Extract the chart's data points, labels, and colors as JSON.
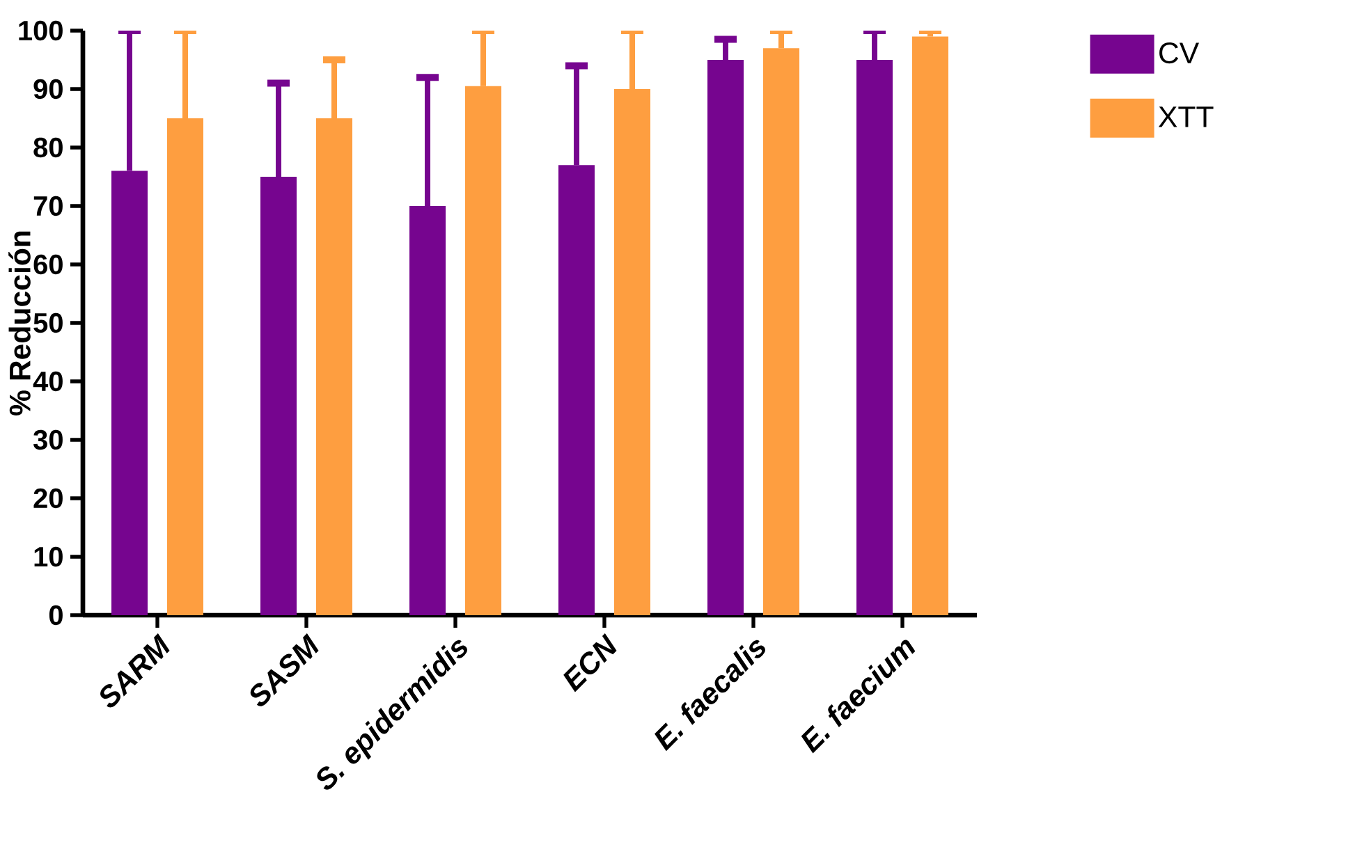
{
  "chart_data": {
    "type": "bar",
    "ylabel": "% Reducción",
    "categories": [
      "SARM",
      "SASM",
      "S. epidermidis",
      "ECN",
      "E. faecalis",
      "E. faecium"
    ],
    "series": [
      {
        "name": "CV",
        "color": "#76058f",
        "values": [
          76,
          75,
          70,
          77,
          95,
          95
        ],
        "errors": [
          [
            76,
            100
          ],
          [
            75,
            91
          ],
          [
            70,
            92
          ],
          [
            77,
            94
          ],
          [
            95,
            98.5
          ],
          [
            95,
            100
          ]
        ]
      },
      {
        "name": "XTT",
        "color": "#fe9e40",
        "values": [
          85,
          85,
          90.5,
          90,
          97,
          99
        ],
        "errors": [
          [
            85,
            100
          ],
          [
            85,
            95
          ],
          [
            90.5,
            100
          ],
          [
            90,
            100
          ],
          [
            97,
            100
          ],
          [
            99,
            100
          ]
        ]
      }
    ],
    "ylim": [
      0,
      100
    ],
    "yticks": [
      0,
      10,
      20,
      30,
      40,
      50,
      60,
      70,
      80,
      90,
      100
    ],
    "grid": false,
    "legend": "top right"
  }
}
